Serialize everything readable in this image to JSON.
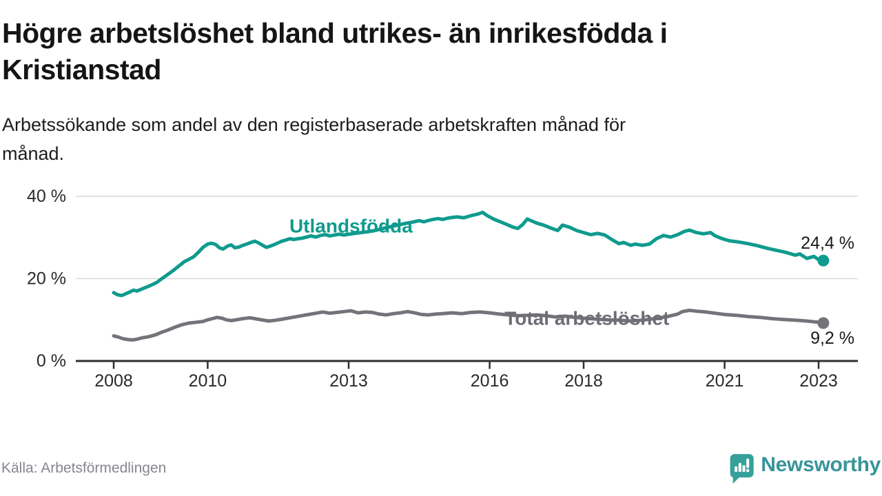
{
  "header": {
    "title_lines": [
      "Högre arbetslöshet bland utrikes- än inrikesfödda i",
      "Kristianstad"
    ],
    "subtitle_lines": [
      "Arbetssökande som andel av den registerbaserade arbetskraften månad för",
      "månad."
    ]
  },
  "footer": {
    "source": "Källa: Arbetsförmedlingen",
    "logo_text": "Newsworthy"
  },
  "colors": {
    "teal_line": "#0f9b8e",
    "gray_line": "#75727a",
    "gray_label": "#6f6c76",
    "grid": "#d9d9d9",
    "axis": "#2f2f2f",
    "axis_text": "#2a2a2a",
    "end_label_text": "#1a1a1a",
    "logo_icon": "#35a19a",
    "logo_text": "#37949a"
  },
  "chart_data": {
    "type": "line",
    "title": "Högre arbetslöshet bland utrikes- än inrikesfödda i Kristianstad",
    "subtitle": "Arbetssökande som andel av den registerbaserade arbetskraften månad för månad.",
    "unit": "%",
    "grid": "horizontal",
    "legend_position": "inline",
    "x_axis": {
      "range": [
        2007.2,
        2023.85
      ],
      "ticks": [
        {
          "year": 2008,
          "label": "2008"
        },
        {
          "year": 2010,
          "label": "2010"
        },
        {
          "year": 2013,
          "label": "2013"
        },
        {
          "year": 2016,
          "label": "2016"
        },
        {
          "year": 2018,
          "label": "2018"
        },
        {
          "year": 2021,
          "label": "2021"
        },
        {
          "year": 2023,
          "label": "2023"
        }
      ]
    },
    "y_axis": {
      "range": [
        0,
        40
      ],
      "gridlines": [
        20,
        40
      ],
      "ticks": [
        {
          "value": 0,
          "label": "0 %"
        },
        {
          "value": 20,
          "label": "20 %"
        },
        {
          "value": 40,
          "label": "40 %"
        }
      ]
    },
    "series": [
      {
        "id": "utlandsfodda",
        "name": "Utlandsfödda",
        "color": "#0f9b8e",
        "label_anchor": {
          "year": 2013.05,
          "value": 32.8
        },
        "end_label": "24,4 %",
        "end_label_dy": -25,
        "end_value": 24.4,
        "points": [
          [
            2008.0,
            16.6
          ],
          [
            2008.08,
            16.1
          ],
          [
            2008.17,
            15.9
          ],
          [
            2008.25,
            16.3
          ],
          [
            2008.33,
            16.7
          ],
          [
            2008.42,
            17.2
          ],
          [
            2008.5,
            17.0
          ],
          [
            2008.58,
            17.4
          ],
          [
            2008.67,
            17.8
          ],
          [
            2008.75,
            18.2
          ],
          [
            2008.83,
            18.6
          ],
          [
            2008.92,
            19.1
          ],
          [
            2009.0,
            19.8
          ],
          [
            2009.1,
            20.6
          ],
          [
            2009.2,
            21.4
          ],
          [
            2009.3,
            22.3
          ],
          [
            2009.4,
            23.2
          ],
          [
            2009.5,
            24.1
          ],
          [
            2009.6,
            24.7
          ],
          [
            2009.7,
            25.3
          ],
          [
            2009.8,
            26.4
          ],
          [
            2009.9,
            27.6
          ],
          [
            2010.0,
            28.4
          ],
          [
            2010.08,
            28.6
          ],
          [
            2010.17,
            28.3
          ],
          [
            2010.25,
            27.5
          ],
          [
            2010.33,
            27.2
          ],
          [
            2010.42,
            27.9
          ],
          [
            2010.5,
            28.2
          ],
          [
            2010.58,
            27.5
          ],
          [
            2010.67,
            27.7
          ],
          [
            2010.75,
            28.1
          ],
          [
            2010.83,
            28.4
          ],
          [
            2010.92,
            28.8
          ],
          [
            2011.0,
            29.1
          ],
          [
            2011.08,
            28.7
          ],
          [
            2011.17,
            28.1
          ],
          [
            2011.25,
            27.6
          ],
          [
            2011.33,
            27.9
          ],
          [
            2011.42,
            28.3
          ],
          [
            2011.5,
            28.7
          ],
          [
            2011.58,
            29.1
          ],
          [
            2011.67,
            29.4
          ],
          [
            2011.75,
            29.7
          ],
          [
            2011.83,
            29.5
          ],
          [
            2011.92,
            29.7
          ],
          [
            2012.0,
            29.8
          ],
          [
            2012.1,
            30.1
          ],
          [
            2012.2,
            30.4
          ],
          [
            2012.3,
            30.1
          ],
          [
            2012.4,
            30.5
          ],
          [
            2012.5,
            30.7
          ],
          [
            2012.6,
            30.4
          ],
          [
            2012.7,
            30.6
          ],
          [
            2012.8,
            30.8
          ],
          [
            2012.9,
            30.6
          ],
          [
            2013.0,
            30.8
          ],
          [
            2013.2,
            31.1
          ],
          [
            2013.4,
            31.4
          ],
          [
            2013.6,
            31.8
          ],
          [
            2013.8,
            32.4
          ],
          [
            2014.0,
            32.9
          ],
          [
            2014.2,
            33.4
          ],
          [
            2014.35,
            33.7
          ],
          [
            2014.5,
            34.1
          ],
          [
            2014.6,
            33.8
          ],
          [
            2014.75,
            34.3
          ],
          [
            2014.9,
            34.6
          ],
          [
            2015.0,
            34.4
          ],
          [
            2015.15,
            34.8
          ],
          [
            2015.3,
            35.0
          ],
          [
            2015.45,
            34.8
          ],
          [
            2015.6,
            35.3
          ],
          [
            2015.75,
            35.7
          ],
          [
            2015.85,
            36.1
          ],
          [
            2015.95,
            35.3
          ],
          [
            2016.1,
            34.4
          ],
          [
            2016.25,
            33.7
          ],
          [
            2016.4,
            33.0
          ],
          [
            2016.5,
            32.5
          ],
          [
            2016.6,
            32.2
          ],
          [
            2016.7,
            33.1
          ],
          [
            2016.8,
            34.5
          ],
          [
            2016.9,
            34.0
          ],
          [
            2017.0,
            33.5
          ],
          [
            2017.15,
            33.0
          ],
          [
            2017.3,
            32.3
          ],
          [
            2017.45,
            31.7
          ],
          [
            2017.55,
            33.0
          ],
          [
            2017.7,
            32.5
          ],
          [
            2017.85,
            31.7
          ],
          [
            2018.0,
            31.2
          ],
          [
            2018.15,
            30.7
          ],
          [
            2018.3,
            31.0
          ],
          [
            2018.45,
            30.6
          ],
          [
            2018.6,
            29.5
          ],
          [
            2018.75,
            28.5
          ],
          [
            2018.85,
            28.8
          ],
          [
            2019.0,
            28.1
          ],
          [
            2019.1,
            28.4
          ],
          [
            2019.25,
            28.1
          ],
          [
            2019.4,
            28.4
          ],
          [
            2019.55,
            29.7
          ],
          [
            2019.7,
            30.5
          ],
          [
            2019.85,
            30.1
          ],
          [
            2020.0,
            30.7
          ],
          [
            2020.15,
            31.5
          ],
          [
            2020.25,
            31.8
          ],
          [
            2020.4,
            31.2
          ],
          [
            2020.55,
            30.9
          ],
          [
            2020.7,
            31.2
          ],
          [
            2020.8,
            30.4
          ],
          [
            2020.95,
            29.7
          ],
          [
            2021.1,
            29.2
          ],
          [
            2021.3,
            28.9
          ],
          [
            2021.5,
            28.5
          ],
          [
            2021.7,
            28.0
          ],
          [
            2021.9,
            27.4
          ],
          [
            2022.1,
            26.9
          ],
          [
            2022.3,
            26.4
          ],
          [
            2022.5,
            25.7
          ],
          [
            2022.6,
            26.0
          ],
          [
            2022.75,
            24.9
          ],
          [
            2022.9,
            25.4
          ],
          [
            2023.0,
            24.6
          ],
          [
            2023.1,
            24.4
          ]
        ]
      },
      {
        "id": "total",
        "name": "Total arbetslöshet",
        "color": "#75727a",
        "label_color": "#6f6c76",
        "label_anchor": {
          "year": 2018.07,
          "value": 10.4
        },
        "end_label": "9,2 %",
        "end_label_dy": 22,
        "end_value": 9.2,
        "points": [
          [
            2008.0,
            6.1
          ],
          [
            2008.1,
            5.8
          ],
          [
            2008.2,
            5.4
          ],
          [
            2008.3,
            5.2
          ],
          [
            2008.4,
            5.1
          ],
          [
            2008.5,
            5.3
          ],
          [
            2008.6,
            5.6
          ],
          [
            2008.75,
            5.9
          ],
          [
            2008.9,
            6.4
          ],
          [
            2009.0,
            6.9
          ],
          [
            2009.15,
            7.5
          ],
          [
            2009.3,
            8.2
          ],
          [
            2009.45,
            8.8
          ],
          [
            2009.6,
            9.2
          ],
          [
            2009.75,
            9.4
          ],
          [
            2009.9,
            9.6
          ],
          [
            2010.0,
            10.0
          ],
          [
            2010.1,
            10.3
          ],
          [
            2010.2,
            10.6
          ],
          [
            2010.3,
            10.4
          ],
          [
            2010.4,
            10.0
          ],
          [
            2010.5,
            9.8
          ],
          [
            2010.6,
            10.0
          ],
          [
            2010.75,
            10.3
          ],
          [
            2010.9,
            10.5
          ],
          [
            2011.0,
            10.3
          ],
          [
            2011.15,
            10.0
          ],
          [
            2011.3,
            9.7
          ],
          [
            2011.45,
            9.9
          ],
          [
            2011.6,
            10.2
          ],
          [
            2011.75,
            10.5
          ],
          [
            2011.9,
            10.8
          ],
          [
            2012.0,
            11.0
          ],
          [
            2012.15,
            11.3
          ],
          [
            2012.3,
            11.6
          ],
          [
            2012.45,
            11.9
          ],
          [
            2012.6,
            11.6
          ],
          [
            2012.75,
            11.8
          ],
          [
            2012.9,
            12.0
          ],
          [
            2013.05,
            12.2
          ],
          [
            2013.2,
            11.7
          ],
          [
            2013.35,
            11.9
          ],
          [
            2013.5,
            11.8
          ],
          [
            2013.65,
            11.4
          ],
          [
            2013.8,
            11.2
          ],
          [
            2013.95,
            11.5
          ],
          [
            2014.1,
            11.7
          ],
          [
            2014.25,
            12.0
          ],
          [
            2014.4,
            11.7
          ],
          [
            2014.55,
            11.3
          ],
          [
            2014.7,
            11.2
          ],
          [
            2014.85,
            11.4
          ],
          [
            2015.0,
            11.5
          ],
          [
            2015.2,
            11.7
          ],
          [
            2015.4,
            11.5
          ],
          [
            2015.6,
            11.8
          ],
          [
            2015.8,
            11.9
          ],
          [
            2016.0,
            11.7
          ],
          [
            2016.2,
            11.4
          ],
          [
            2016.4,
            11.2
          ],
          [
            2016.6,
            11.0
          ],
          [
            2016.8,
            11.1
          ],
          [
            2017.0,
            11.2
          ],
          [
            2017.2,
            11.0
          ],
          [
            2017.4,
            10.7
          ],
          [
            2017.6,
            10.9
          ],
          [
            2017.8,
            10.6
          ],
          [
            2018.0,
            10.4
          ],
          [
            2018.25,
            10.2
          ],
          [
            2018.5,
            10.0
          ],
          [
            2018.75,
            9.9
          ],
          [
            2019.0,
            9.7
          ],
          [
            2019.25,
            9.9
          ],
          [
            2019.5,
            10.3
          ],
          [
            2019.75,
            10.7
          ],
          [
            2020.0,
            11.4
          ],
          [
            2020.1,
            12.0
          ],
          [
            2020.25,
            12.3
          ],
          [
            2020.4,
            12.1
          ],
          [
            2020.6,
            11.9
          ],
          [
            2020.8,
            11.6
          ],
          [
            2021.0,
            11.3
          ],
          [
            2021.25,
            11.1
          ],
          [
            2021.5,
            10.8
          ],
          [
            2021.75,
            10.6
          ],
          [
            2022.0,
            10.3
          ],
          [
            2022.25,
            10.1
          ],
          [
            2022.5,
            9.9
          ],
          [
            2022.75,
            9.7
          ],
          [
            2023.0,
            9.4
          ],
          [
            2023.1,
            9.2
          ]
        ]
      }
    ]
  }
}
